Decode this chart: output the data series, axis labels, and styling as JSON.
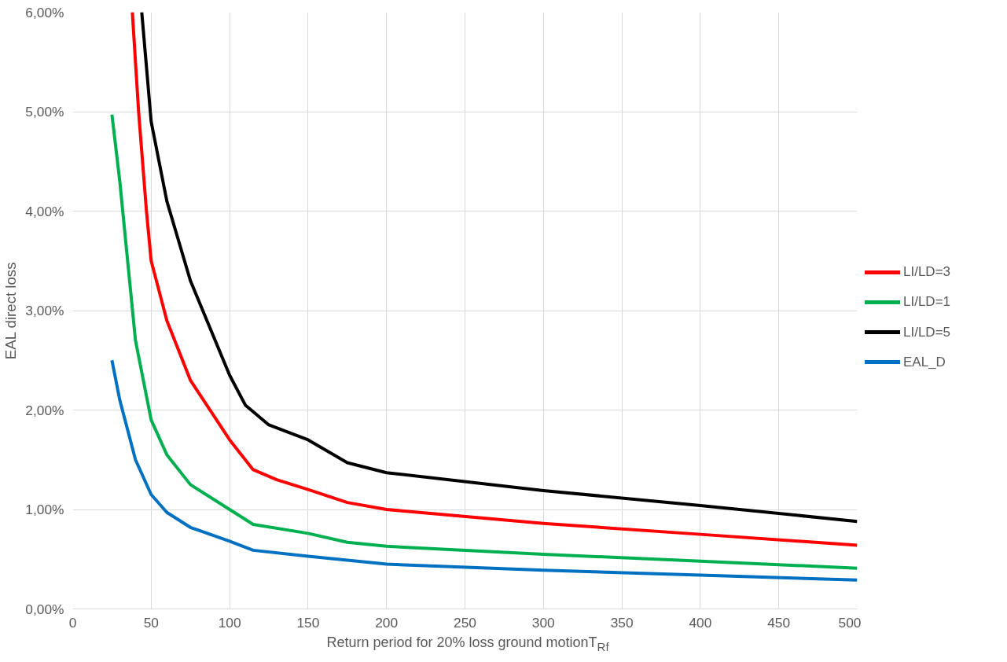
{
  "chart_data": {
    "type": "line",
    "xlabel": "Return period for 20% loss ground motionT$_{Rf}$",
    "ylabel": "EAL direct loss",
    "xlim": [
      0,
      500
    ],
    "xticks": [
      0,
      50,
      100,
      150,
      200,
      250,
      300,
      350,
      400,
      450,
      500
    ],
    "ylim": [
      0,
      6
    ],
    "yticks": [
      {
        "value": 0,
        "label": "0,00%"
      },
      {
        "value": 1,
        "label": "1,00%"
      },
      {
        "value": 2,
        "label": "2,00%"
      },
      {
        "value": 3,
        "label": "3,00%"
      },
      {
        "value": 4,
        "label": "4,00%"
      },
      {
        "value": 5,
        "label": "5,00%"
      },
      {
        "value": 6,
        "label": "6,00%"
      }
    ],
    "grid": true,
    "legend": "right",
    "marker": "none",
    "line_style": "solid",
    "series": [
      {
        "name": "LI/LD=3",
        "color": "#ff0000",
        "x": [
          38,
          42,
          47,
          50,
          60,
          75,
          100,
          115,
          130,
          150,
          175,
          200,
          300,
          400,
          500
        ],
        "values": [
          6.0,
          5.0,
          4.0,
          3.5,
          2.9,
          2.3,
          1.7,
          1.4,
          1.3,
          1.2,
          1.07,
          1.0,
          0.86,
          0.75,
          0.64
        ]
      },
      {
        "name": "LI/LD=1",
        "color": "#00b050",
        "x": [
          25,
          30,
          35,
          40,
          50,
          60,
          75,
          100,
          115,
          150,
          175,
          200,
          300,
          400,
          500
        ],
        "values": [
          4.97,
          4.3,
          3.5,
          2.7,
          1.9,
          1.55,
          1.25,
          1.0,
          0.85,
          0.76,
          0.67,
          0.63,
          0.55,
          0.48,
          0.41
        ]
      },
      {
        "name": "LI/LD=5",
        "color": "#000000",
        "x": [
          44,
          50,
          60,
          75,
          100,
          110,
          125,
          150,
          175,
          200,
          300,
          400,
          500
        ],
        "values": [
          6.0,
          4.9,
          4.1,
          3.3,
          2.35,
          2.05,
          1.85,
          1.7,
          1.47,
          1.37,
          1.19,
          1.04,
          0.88
        ]
      },
      {
        "name": "EAL_D",
        "color": "#0070c0",
        "x": [
          25,
          30,
          40,
          50,
          60,
          75,
          100,
          115,
          150,
          200,
          300,
          400,
          500
        ],
        "values": [
          2.5,
          2.1,
          1.5,
          1.15,
          0.97,
          0.82,
          0.68,
          0.59,
          0.53,
          0.45,
          0.39,
          0.34,
          0.29
        ]
      }
    ]
  }
}
